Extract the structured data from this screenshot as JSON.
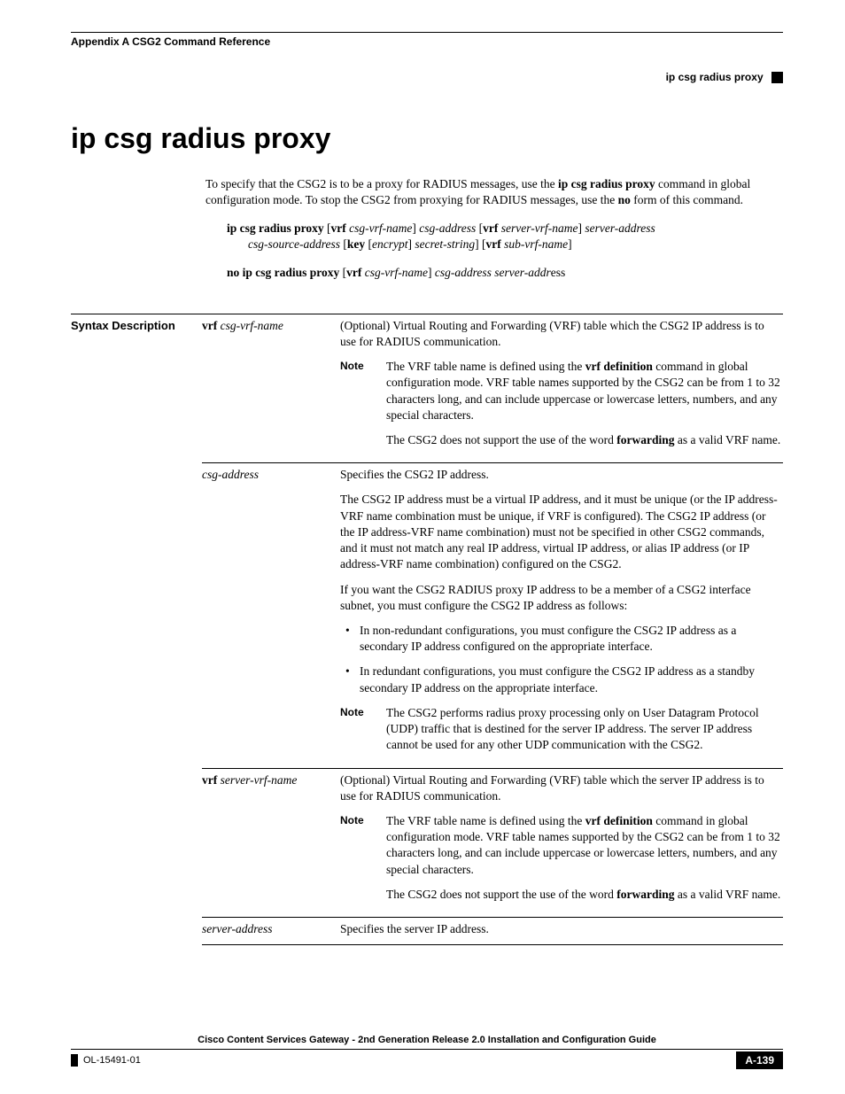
{
  "header": {
    "left": "Appendix A    CSG2 Command Reference",
    "right": "ip csg radius proxy"
  },
  "title": "ip csg radius proxy",
  "intro": "To specify that the CSG2 is to be a proxy for RADIUS messages, use the <b>ip csg radius proxy</b> command in global configuration mode. To stop the CSG2 from proxying for RADIUS messages, use the <b>no</b> form of this command.",
  "syntax1a": "<b>ip csg radius proxy</b> [<b>vrf</b> <i>csg-vrf-name</i>] <i>csg-address</i> [<b>vrf</b> <i>server-vrf-name</i>] <i>server-address</i>",
  "syntax1b": "<i>csg-source-address</i> [<b>key</b> [<i>encrypt</i>] <i>secret-string</i>] [<b>vrf</b> <i>sub-vrf-name</i>]",
  "syntax2": "<b>no ip csg radius proxy</b> [<b>vrf</b> <i>csg-vrf-name</i>] <i>csg-address server-addr</i>ess",
  "section_label": "Syntax Description",
  "table": {
    "row1": {
      "param": "<b>vrf</b> <i>csg-vrf-name</i>",
      "desc": "(Optional) Virtual Routing and Forwarding (VRF) table which the CSG2 IP address is to use for RADIUS communication.",
      "note1": "The VRF table name is defined using the <b>vrf definition</b> command in global configuration mode. VRF table names supported by the CSG2 can be from 1 to 32 characters long, and can include uppercase or lowercase letters, numbers, and any special characters.",
      "note2": "The CSG2 does not support the use of the word <b>forwarding</b> as a valid VRF name."
    },
    "row2": {
      "param": "<i>csg-address</i>",
      "d1": "Specifies the CSG2 IP address.",
      "d2": "The CSG2 IP address must be a virtual IP address, and it must be unique (or the IP address-VRF name combination must be unique, if VRF is configured). The CSG2 IP address (or the IP address-VRF name combination) must not be specified in other CSG2 commands, and it must not match any real IP address, virtual IP address, or alias IP address (or IP address-VRF name combination) configured on the CSG2.",
      "d3": "If you want the CSG2 RADIUS proxy IP address to be a member of a CSG2 interface subnet, you must configure the CSG2 IP address as follows:",
      "b1": "In non-redundant configurations, you must configure the CSG2 IP address as a secondary IP address configured on the appropriate interface.",
      "b2": "In redundant configurations, you must configure the CSG2 IP address as a standby secondary IP address on the appropriate interface.",
      "note": "The CSG2 performs radius proxy processing only on User Datagram Protocol (UDP) traffic that is destined for the server IP address. The server IP address cannot be used for any other UDP communication with the CSG2."
    },
    "row3": {
      "param": "<b>vrf</b> <i>server-vrf-name</i>",
      "desc": "(Optional) Virtual Routing and Forwarding (VRF) table which the server IP address is to use for RADIUS communication.",
      "note1": "The VRF table name is defined using the <b>vrf definition</b> command in global configuration mode. VRF table names supported by the CSG2 can be from 1 to 32 characters long, and can include uppercase or lowercase letters, numbers, and any special characters.",
      "note2": "The CSG2 does not support the use of the word <b>forwarding</b> as a valid VRF name."
    },
    "row4": {
      "param": "<i>server-address</i>",
      "desc": "Specifies the server IP address."
    }
  },
  "note_label": "Note",
  "footer": {
    "title": "Cisco Content Services Gateway - 2nd Generation Release 2.0 Installation and Configuration Guide",
    "left": "OL-15491-01",
    "right": "A-139"
  }
}
